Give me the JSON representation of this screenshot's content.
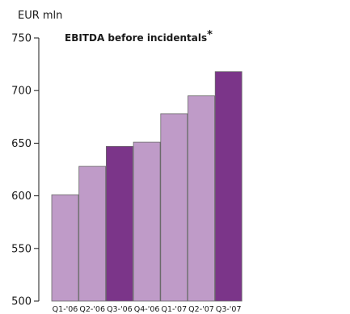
{
  "chart_data": {
    "type": "bar",
    "title": "EBITDA before incidentals",
    "title_marker": "*",
    "ylabel": "EUR mln",
    "xlabel": "",
    "categories": [
      "Q1-'06",
      "Q2-'06",
      "Q3-'06",
      "Q4-'06",
      "Q1-'07",
      "Q2-'07",
      "Q3-'07"
    ],
    "values": [
      601,
      628,
      647,
      651,
      678,
      695,
      718
    ],
    "highlighted": [
      false,
      false,
      true,
      false,
      false,
      false,
      true
    ],
    "ylim": [
      500,
      750
    ],
    "yticks": [
      "500",
      "550",
      "600",
      "650",
      "700",
      "750"
    ],
    "grid": false,
    "legend": "none",
    "colors": {
      "bar": "#bf9bc8",
      "bar_highlight": "#7b3589",
      "bar_stroke": "#6a6a6a"
    }
  }
}
